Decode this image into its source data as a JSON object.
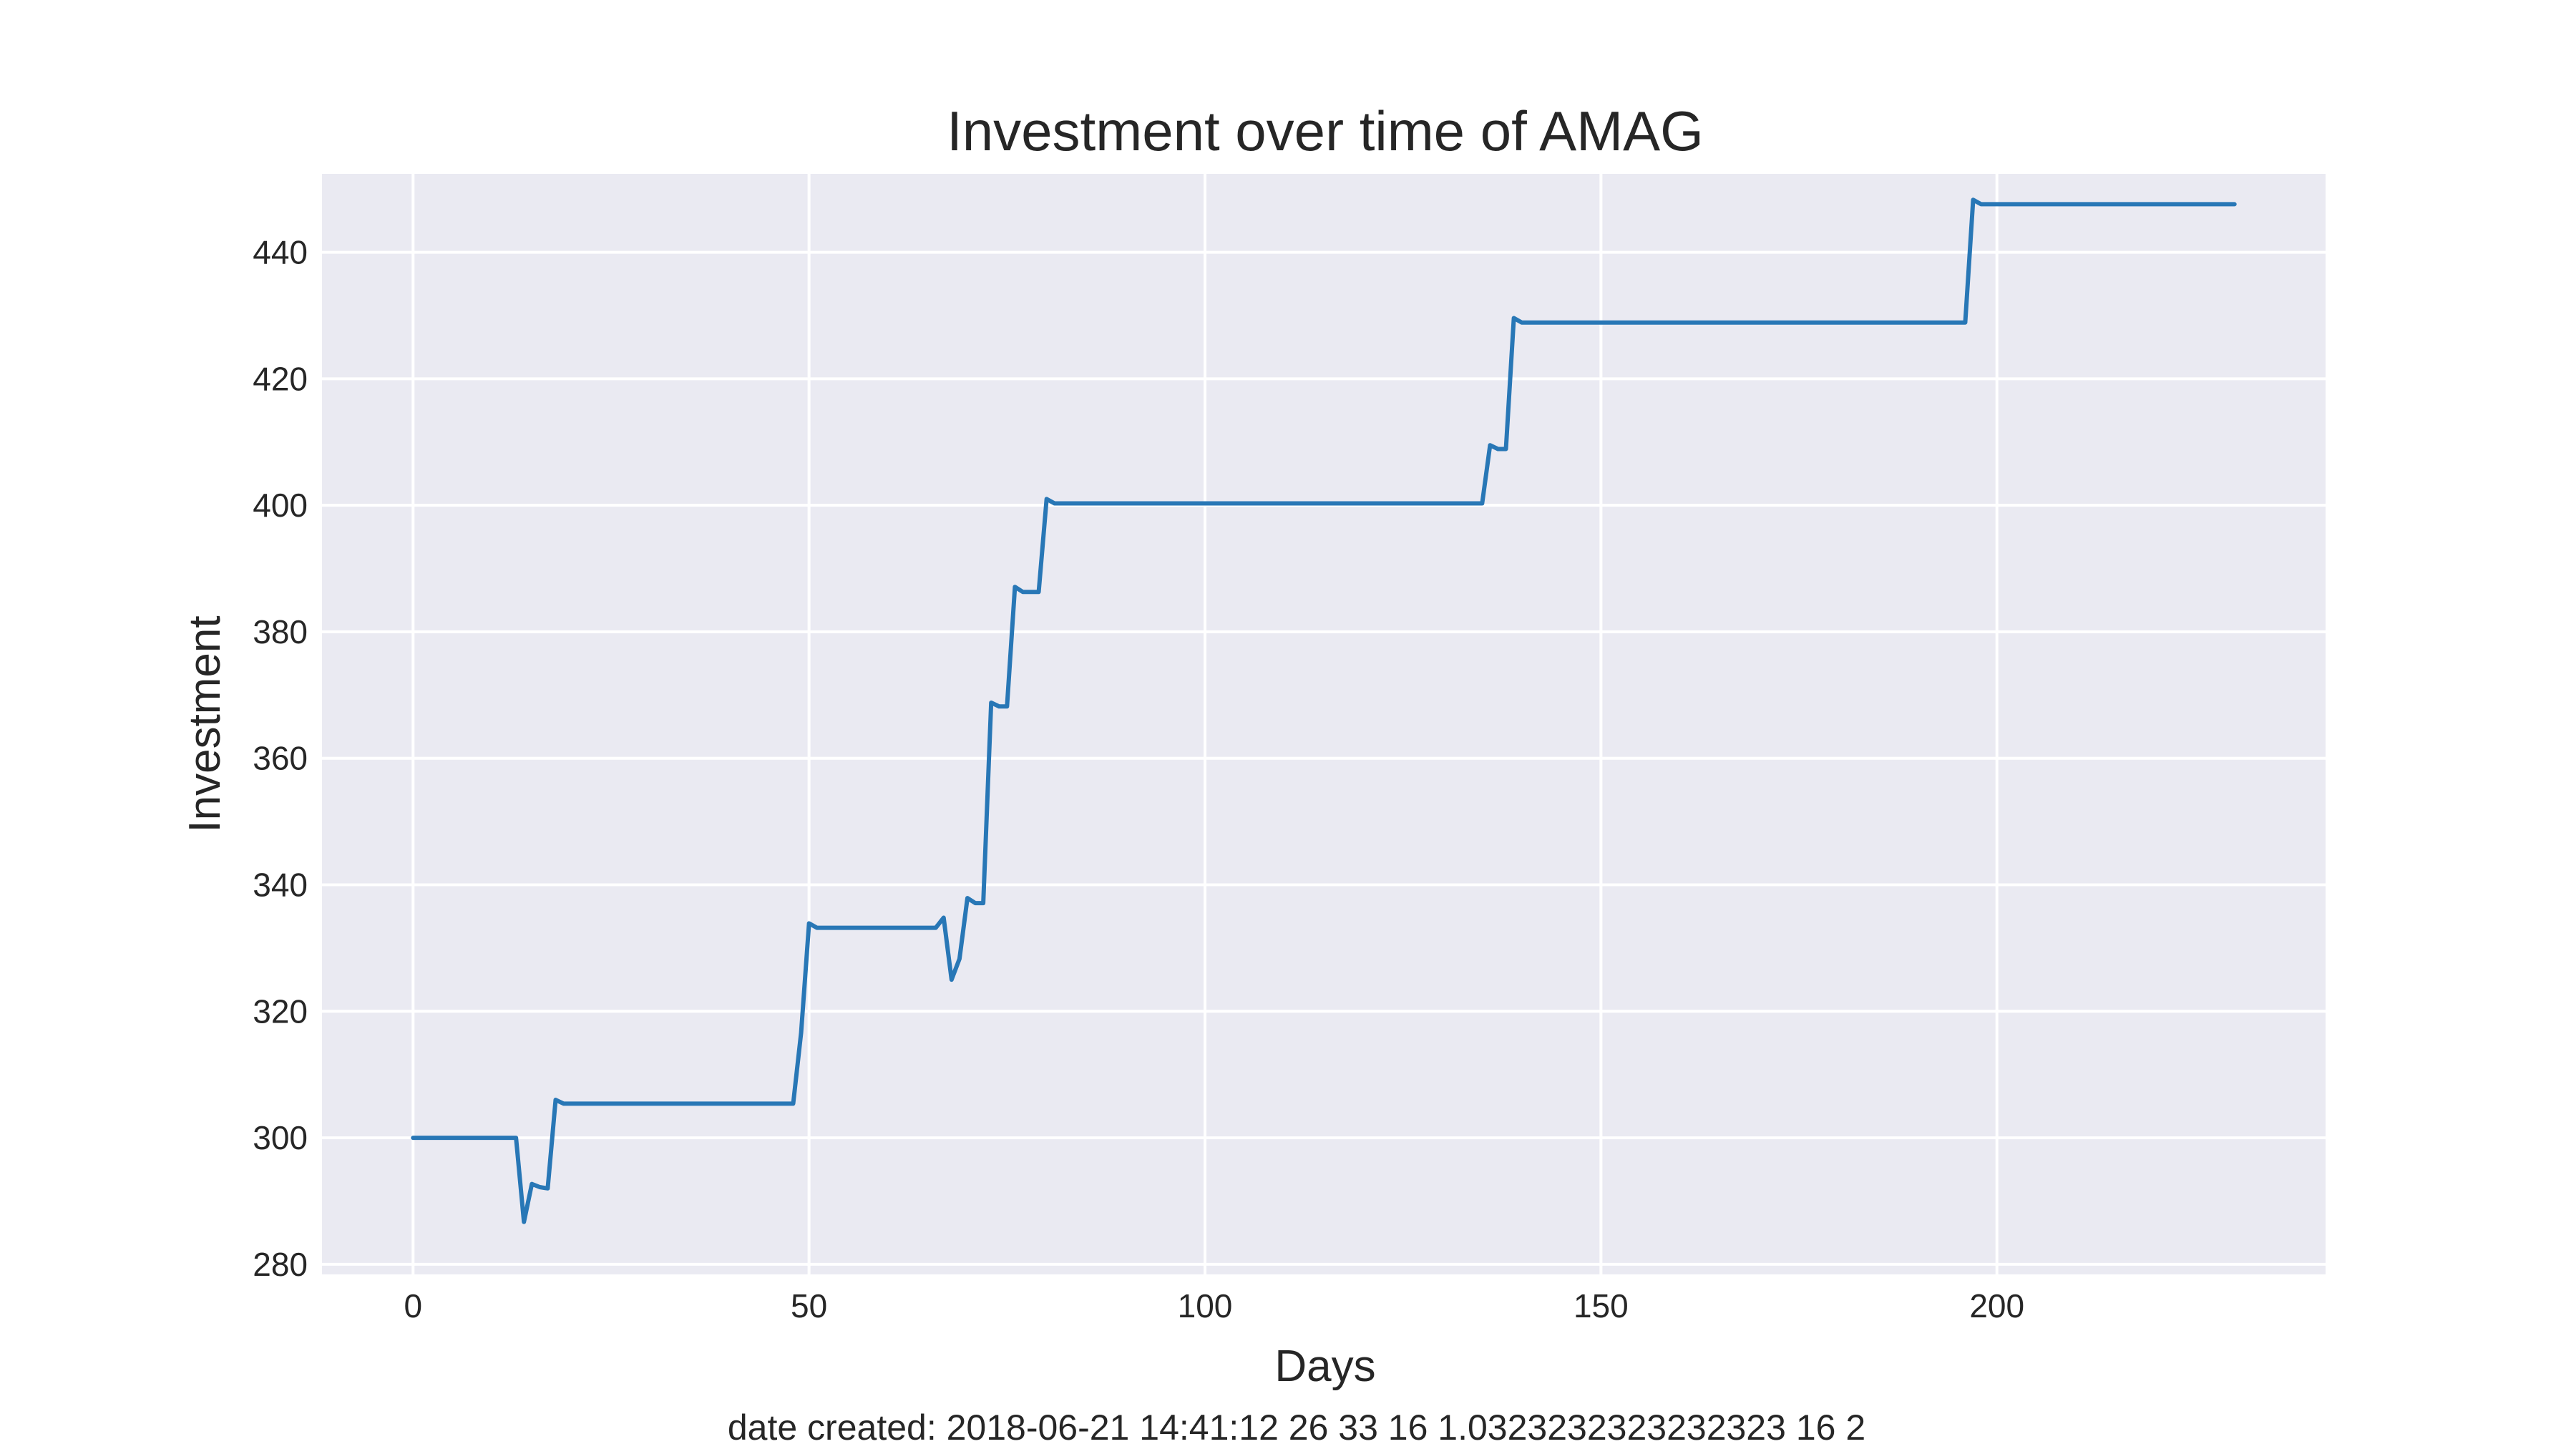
{
  "chart_data": {
    "type": "line",
    "title": "Investment over time of AMAG",
    "xlabel": "Days",
    "ylabel": "Investment",
    "xlim": [
      -11.5,
      241.5
    ],
    "ylim": [
      278.4,
      452.4
    ],
    "xticks": [
      0,
      50,
      100,
      150,
      200
    ],
    "yticks": [
      280,
      300,
      320,
      340,
      360,
      380,
      400,
      420,
      440
    ],
    "grid": true,
    "legend": "none",
    "colors": {
      "line": "#2877b6",
      "plot_bg": "#eaeaf2",
      "grid": "#ffffff"
    },
    "series": [
      {
        "x": [
          0,
          13,
          14,
          15,
          16,
          17,
          18,
          19,
          48,
          49,
          50,
          51,
          66,
          67,
          68,
          69,
          70,
          71,
          72,
          73,
          74,
          75,
          76,
          77,
          78,
          79,
          80,
          81,
          82,
          83,
          135,
          136,
          137,
          138,
          139,
          140,
          196,
          197,
          198,
          230
        ],
        "y": [
          300.0,
          300.0,
          286.7,
          292.7,
          292.2,
          292.0,
          306.0,
          305.4,
          305.4,
          316.6,
          333.9,
          333.2,
          333.2,
          334.8,
          325.0,
          328.3,
          337.9,
          337.1,
          337.1,
          368.8,
          368.2,
          368.2,
          387.1,
          386.3,
          386.3,
          386.3,
          401.0,
          400.3,
          400.3,
          400.3,
          400.3,
          409.5,
          408.9,
          408.9,
          429.6,
          428.9,
          428.9,
          448.3,
          447.6,
          447.6
        ]
      }
    ]
  },
  "footer": {
    "text": "date created: 2018-06-21 14:41:12 26 33 16 1.0323232323232323 16 2"
  }
}
